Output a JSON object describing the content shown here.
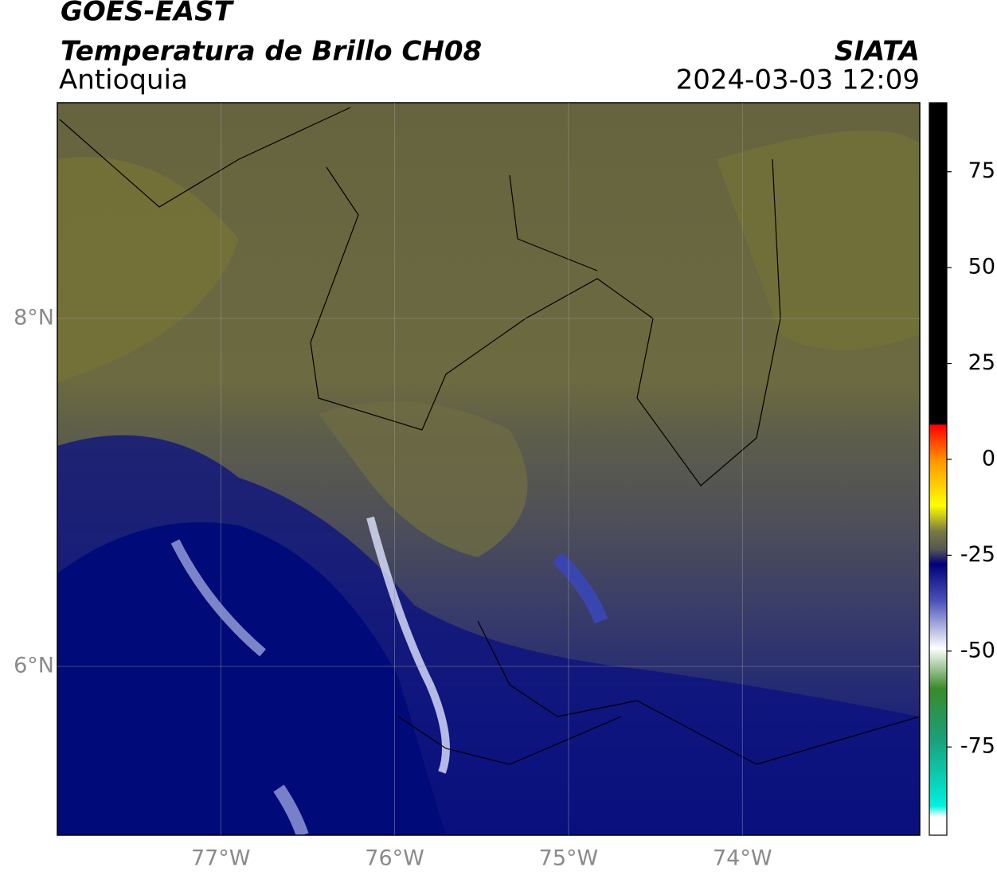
{
  "header": {
    "title": "GOES-EAST",
    "subtitle": "Temperatura de Brillo CH08",
    "region": "Antioquia",
    "source": "SIATA",
    "timestamp": "2024-03-03 12:09"
  },
  "map": {
    "xlim": [
      -77.94,
      -72.98
    ],
    "ylim": [
      5.03,
      9.24
    ],
    "xticks": [
      {
        "value": -77,
        "label": "77°W"
      },
      {
        "value": -76,
        "label": "76°W"
      },
      {
        "value": -75,
        "label": "75°W"
      },
      {
        "value": -74,
        "label": "74°W"
      }
    ],
    "yticks": [
      {
        "value": 6,
        "label": "6°N"
      },
      {
        "value": 8,
        "label": "8°N"
      }
    ],
    "grid": true
  },
  "colorbar": {
    "lim": [
      -98,
      93
    ],
    "ticks": [
      75,
      50,
      25,
      0,
      -25,
      -50,
      -75
    ]
  }
}
